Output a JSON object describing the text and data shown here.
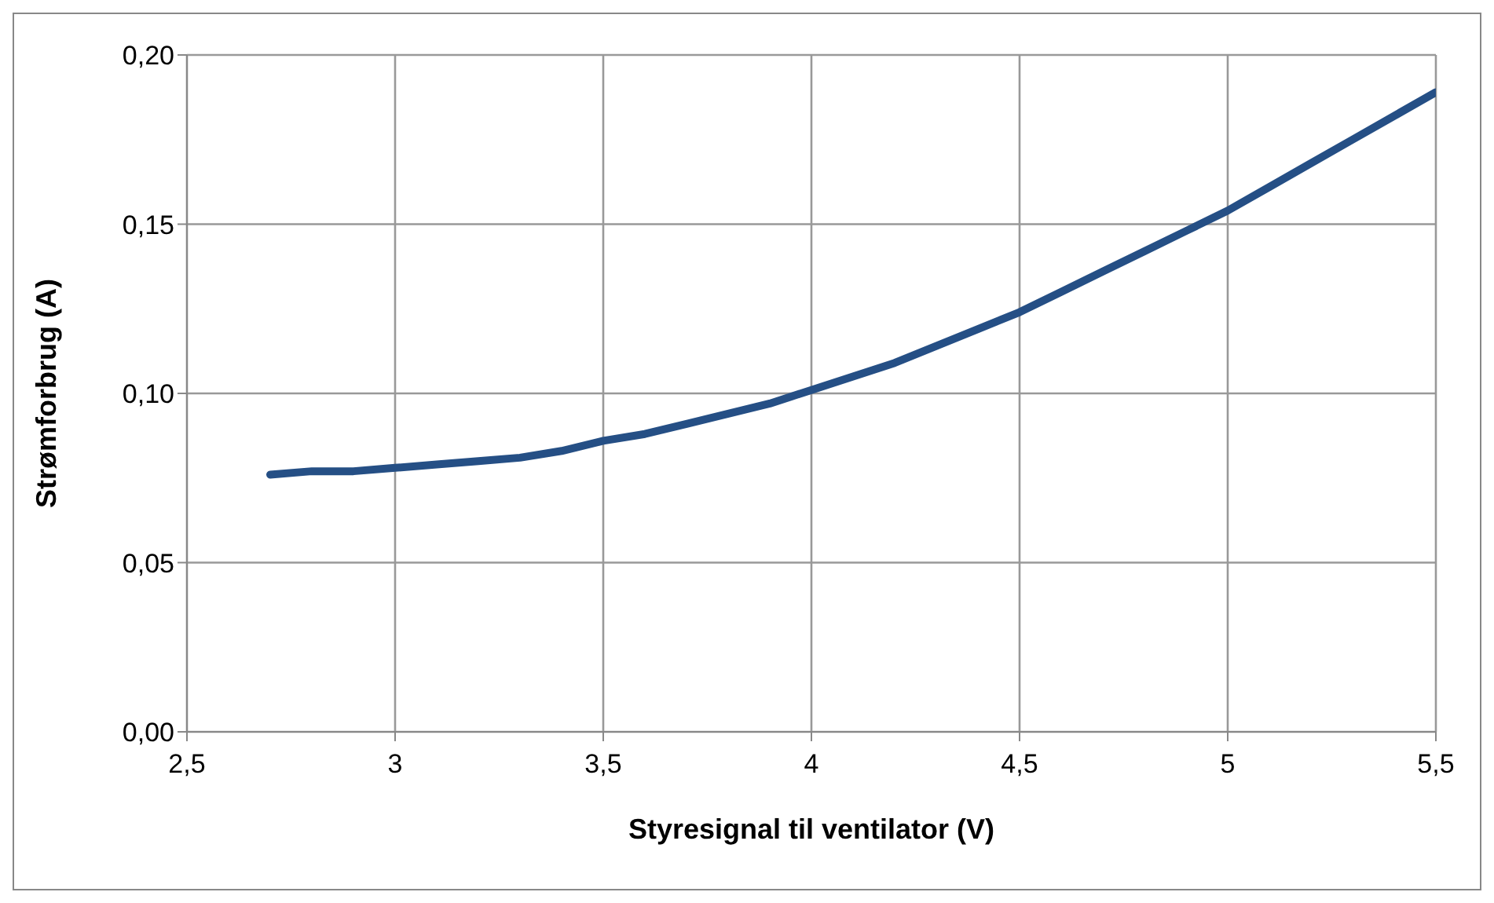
{
  "chart_data": {
    "type": "line",
    "xlabel": "Styresignal til ventilator (V)",
    "ylabel": "Strømforbrug (A)",
    "x": [
      2.7,
      2.8,
      2.9,
      3.0,
      3.1,
      3.2,
      3.3,
      3.4,
      3.5,
      3.6,
      3.7,
      3.8,
      3.9,
      4.0,
      4.1,
      4.2,
      4.3,
      4.4,
      4.5,
      4.6,
      4.7,
      4.8,
      4.9,
      5.0,
      5.1,
      5.2,
      5.3,
      5.4,
      5.5
    ],
    "series": [
      {
        "color": "#254f85",
        "values": [
          0.076,
          0.077,
          0.077,
          0.078,
          0.079,
          0.08,
          0.081,
          0.083,
          0.086,
          0.088,
          0.091,
          0.094,
          0.097,
          0.101,
          0.105,
          0.109,
          0.114,
          0.119,
          0.124,
          0.13,
          0.136,
          0.142,
          0.148,
          0.154,
          0.161,
          0.168,
          0.175,
          0.182,
          0.189
        ]
      }
    ],
    "xlim": [
      2.5,
      5.5
    ],
    "xticks": [
      {
        "value": 2.5,
        "label": "2,5"
      },
      3,
      {
        "value": 3.5,
        "label": "3,5"
      },
      4,
      {
        "value": 4.5,
        "label": "4,5"
      },
      5,
      {
        "value": 5.5,
        "label": "5,5"
      }
    ],
    "ylim": [
      0,
      0.2
    ],
    "yticks": [
      {
        "value": 0,
        "label": "0,00"
      },
      {
        "value": 0.05,
        "label": "0,05"
      },
      {
        "value": 0.1,
        "label": "0,10"
      },
      {
        "value": 0.15,
        "label": "0,15"
      },
      {
        "value": 0.2,
        "label": "0,20"
      }
    ],
    "grid": true,
    "legend": false,
    "marker": "none",
    "line_style": "solid"
  }
}
